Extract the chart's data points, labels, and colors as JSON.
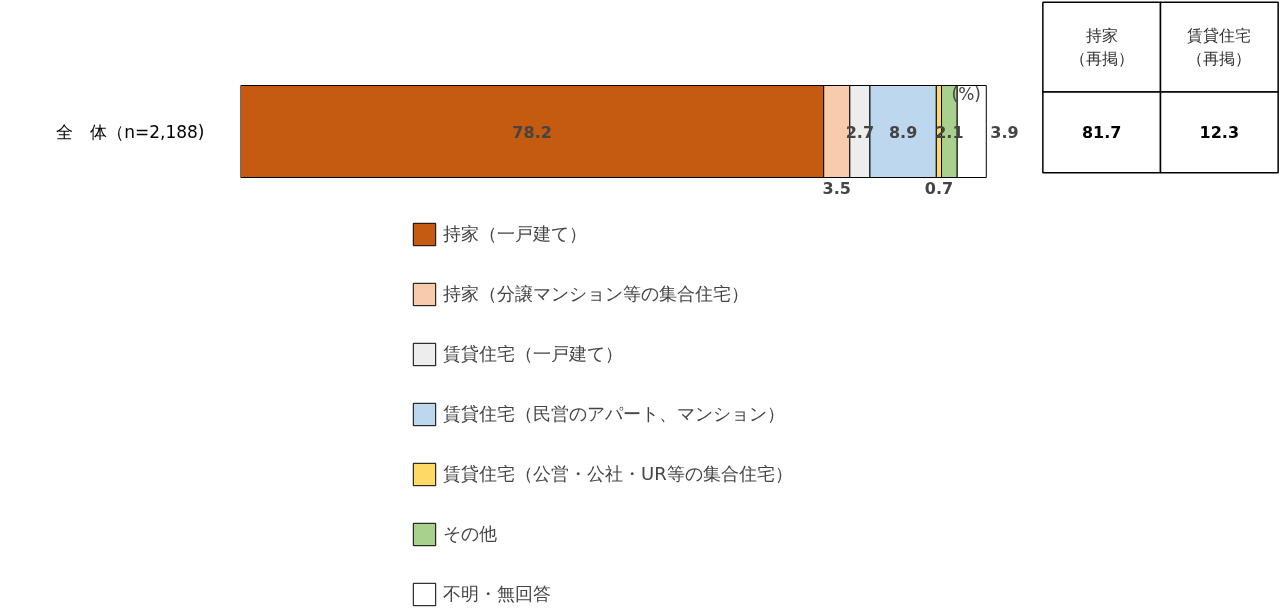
{
  "chart_data": [
    {
      "type": "bar",
      "orientation": "horizontal",
      "stacked": true,
      "categories": [
        "全　体（n=2,188)"
      ],
      "data_labels": true,
      "legend": "bottom",
      "annotations": [
        "(%)"
      ],
      "series": [
        {
          "name": "持家（一戸建て）",
          "color": "#c55a11",
          "values": [
            78.2
          ]
        },
        {
          "name": "持家（分譲マンション等の集合住宅）",
          "color": "#f8cbad",
          "values": [
            3.5
          ]
        },
        {
          "name": "賃貸住宅（一戸建て）",
          "color": "#ededed",
          "values": [
            2.7
          ]
        },
        {
          "name": "賃貸住宅（民営のアパート、マンション）",
          "color": "#bdd7ee",
          "values": [
            8.9
          ]
        },
        {
          "name": "賃貸住宅（公営・公社・UR等の集合住宅）",
          "color": "#ffd966",
          "values": [
            0.7
          ]
        },
        {
          "name": "その他",
          "color": "#a9d18e",
          "values": [
            2.1
          ]
        },
        {
          "name": "不明・無回答",
          "color": "#ffffff",
          "values": [
            3.9
          ]
        }
      ]
    },
    {
      "type": "other",
      "categories": [
        "持家（再掲）",
        "賃貸住宅（再掲）"
      ],
      "values": [
        81.7,
        12.3
      ],
      "data_labels": true
    }
  ]
}
